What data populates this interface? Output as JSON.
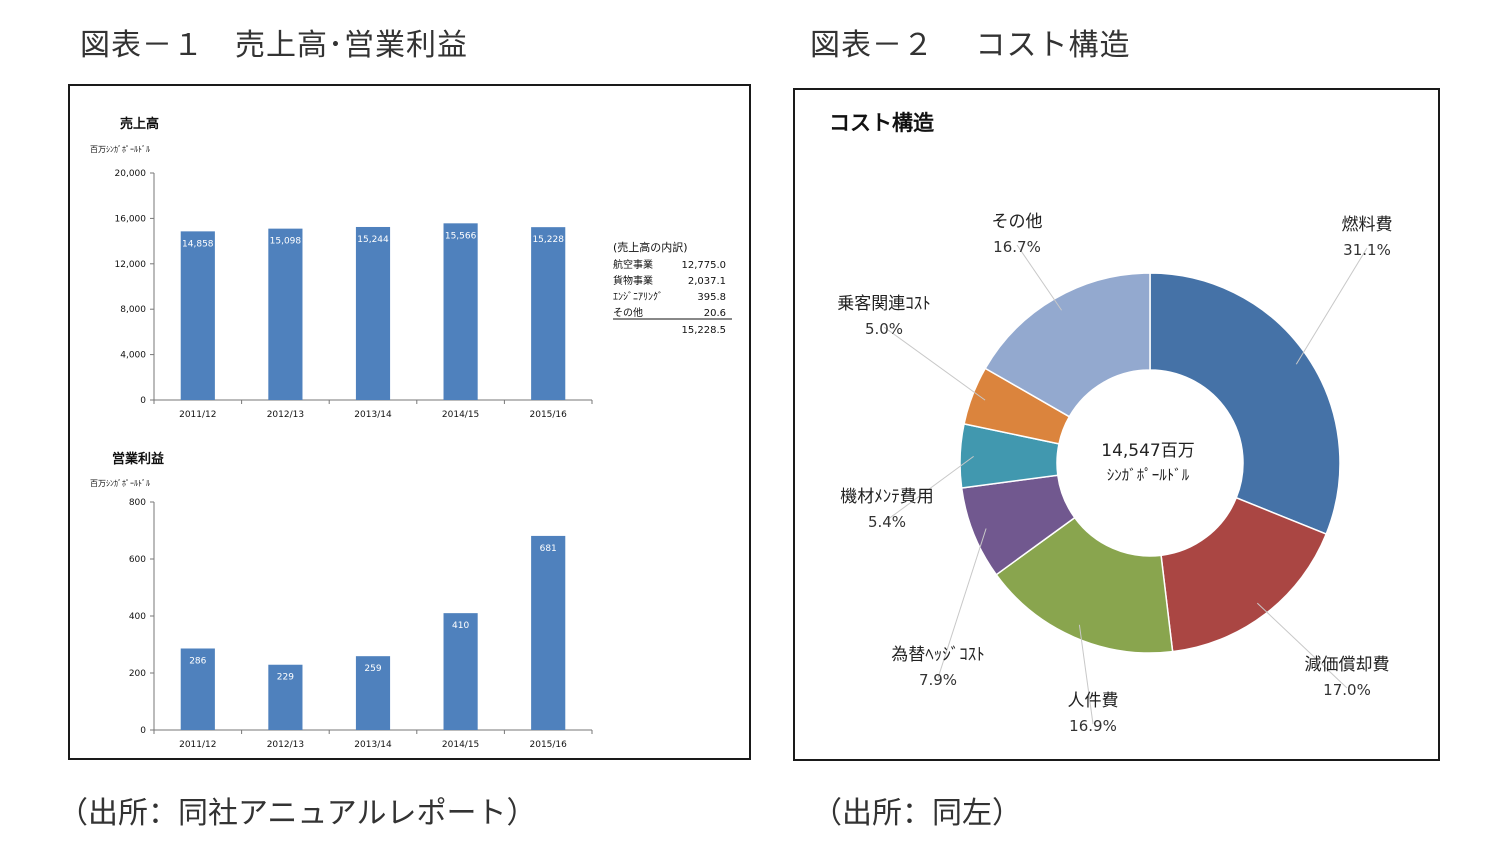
{
  "figure1": {
    "title": "図表－１　売上高･営業利益",
    "source": "（出所：同社アニュアルレポート）"
  },
  "figure2": {
    "title": "図表－２　 コスト構造",
    "source": "（出所：同左）"
  },
  "breakdown": {
    "title": "(売上高の内訳)",
    "items": [
      {
        "label": "航空事業",
        "value": "12,775.0"
      },
      {
        "label": "貨物事業",
        "value": "2,037.1"
      },
      {
        "label": "ｴﾝｼﾞﾆｱﾘﾝｸﾞ",
        "value": "395.8"
      },
      {
        "label": "その他",
        "value": "20.6"
      }
    ],
    "total": "15,228.5"
  },
  "chart_data": [
    {
      "type": "bar",
      "title": "売上高",
      "ylabel": "百万ｼﾝｶﾞﾎﾟｰﾙﾄﾞﾙ",
      "categories": [
        "2011/12",
        "2012/13",
        "2013/14",
        "2014/15",
        "2015/16"
      ],
      "values": [
        14858,
        15098,
        15244,
        15566,
        15228
      ],
      "value_labels": [
        "14,858",
        "15,098",
        "15,244",
        "15,566",
        "15,228"
      ],
      "ylim": [
        0,
        20000
      ],
      "yticks": [
        0,
        4000,
        8000,
        12000,
        16000,
        20000
      ],
      "ytick_labels": [
        "0",
        "4,000",
        "8,000",
        "12,000",
        "16,000",
        "20,000"
      ],
      "color": "#4f81bd",
      "grid": false
    },
    {
      "type": "bar",
      "title": "営業利益",
      "ylabel": "百万ｼﾝｶﾞﾎﾟｰﾙﾄﾞﾙ",
      "categories": [
        "2011/12",
        "2012/13",
        "2013/14",
        "2014/15",
        "2015/16"
      ],
      "values": [
        286,
        229,
        259,
        410,
        681
      ],
      "value_labels": [
        "286",
        "229",
        "259",
        "410",
        "681"
      ],
      "ylim": [
        0,
        800
      ],
      "yticks": [
        0,
        200,
        400,
        600,
        800
      ],
      "ytick_labels": [
        "0",
        "200",
        "400",
        "600",
        "800"
      ],
      "color": "#4f81bd",
      "grid": false
    },
    {
      "type": "pie",
      "title": "コスト構造",
      "center_label": [
        "14,547百万",
        "ｼﾝｶﾞﾎﾟｰﾙﾄﾞﾙ"
      ],
      "slices": [
        {
          "name": "燃料費",
          "value": 31.1,
          "label": "31.1%",
          "color": "#4572a7"
        },
        {
          "name": "減価償却費",
          "value": 17.0,
          "label": "17.0%",
          "color": "#aa4643"
        },
        {
          "name": "人件費",
          "value": 16.9,
          "label": "16.9%",
          "color": "#89a54e"
        },
        {
          "name": "為替ﾍｯｼﾞｺｽﾄ",
          "value": 7.9,
          "label": "7.9%",
          "color": "#71588f"
        },
        {
          "name": "機材ﾒﾝﾃ費用",
          "value": 5.4,
          "label": "5.4%",
          "color": "#4198af"
        },
        {
          "name": "乗客関連ｺｽﾄ",
          "value": 5.0,
          "label": "5.0%",
          "color": "#db843d"
        },
        {
          "name": "その他",
          "value": 16.7,
          "label": "16.7%",
          "color": "#93a9cf"
        }
      ]
    }
  ]
}
